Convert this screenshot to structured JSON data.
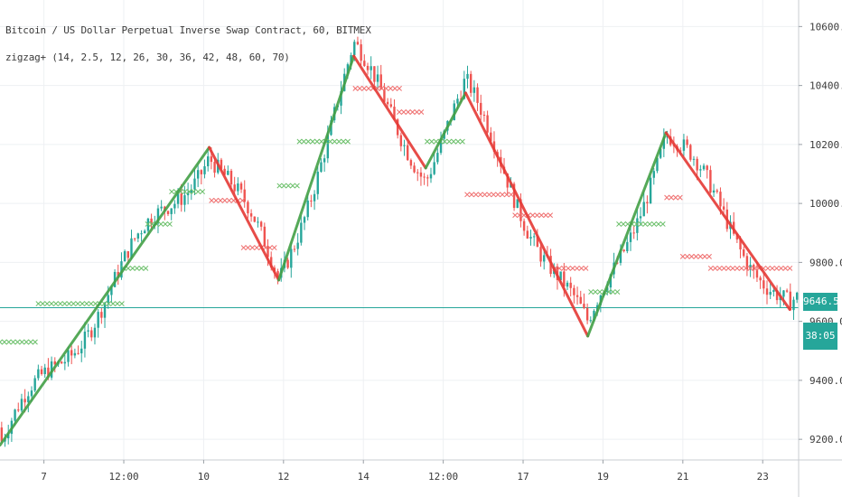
{
  "header": {
    "symbol_title": "Bitcoin / US Dollar Perpetual Inverse Swap Contract, 60, BITMEX",
    "indicator_title": "zigzag+ (14, 2.5, 12, 26, 30, 36, 42, 48, 60, 70)"
  },
  "price_axis": {
    "last_price": "9646.5",
    "countdown": "38:05"
  },
  "colors": {
    "up": "#26a69a",
    "down": "#ef5350",
    "zigzag_up": "#43a047",
    "zigzag_down": "#e53935",
    "marker_up": "#6abf69",
    "marker_down": "#ef7070",
    "price_line": "#26a69a",
    "grid": "#eef0f3",
    "axis_text": "#3b3b3b"
  },
  "chart_data": {
    "type": "candlestick",
    "title": "Bitcoin / US Dollar Perpetual Inverse Swap Contract, 60, BITMEX",
    "indicator": "zigzag+ (14, 2.5, 12, 26, 30, 36, 42, 48, 60, 70)",
    "x_ticks": [
      "7",
      "12:00",
      "10",
      "12",
      "14",
      "12:00",
      "17",
      "19",
      "21",
      "23"
    ],
    "y_ticks": [
      "9200.0",
      "9400.0",
      "9600.0",
      "9800.0",
      "10000.0",
      "10200.0",
      "10400.0",
      "10600.0"
    ],
    "ylim": [
      9130,
      10690
    ],
    "xlim": [
      0,
      100
    ],
    "grid": true,
    "last_price": 9646.5,
    "zigzag": [
      {
        "x": 0,
        "y": 9180
      },
      {
        "x": 26.2,
        "y": 10190
      },
      {
        "x": 34.9,
        "y": 9740
      },
      {
        "x": 44.3,
        "y": 10500
      },
      {
        "x": 53.3,
        "y": 10120
      },
      {
        "x": 58.3,
        "y": 10375
      },
      {
        "x": 73.6,
        "y": 9550
      },
      {
        "x": 83.4,
        "y": 10240
      },
      {
        "x": 98.9,
        "y": 9640
      }
    ],
    "markers": [
      {
        "x0": 0,
        "x1": 4.5,
        "y": 9530,
        "dir": "up"
      },
      {
        "x0": 4.8,
        "x1": 15.5,
        "y": 9660,
        "dir": "up"
      },
      {
        "x0": 15.5,
        "x1": 18.5,
        "y": 9780,
        "dir": "up"
      },
      {
        "x0": 18.5,
        "x1": 21.5,
        "y": 9930,
        "dir": "up"
      },
      {
        "x0": 21.5,
        "x1": 25.5,
        "y": 10040,
        "dir": "up"
      },
      {
        "x0": 26.5,
        "x1": 30.5,
        "y": 10010,
        "dir": "down"
      },
      {
        "x0": 30.5,
        "x1": 34.5,
        "y": 9850,
        "dir": "down"
      },
      {
        "x0": 35,
        "x1": 37.5,
        "y": 10060,
        "dir": "up"
      },
      {
        "x0": 37.5,
        "x1": 44,
        "y": 10210,
        "dir": "up"
      },
      {
        "x0": 44.5,
        "x1": 50,
        "y": 10390,
        "dir": "down"
      },
      {
        "x0": 50,
        "x1": 53,
        "y": 10310,
        "dir": "down"
      },
      {
        "x0": 53.5,
        "x1": 58,
        "y": 10210,
        "dir": "up"
      },
      {
        "x0": 58.5,
        "x1": 64,
        "y": 10030,
        "dir": "down"
      },
      {
        "x0": 64.5,
        "x1": 69,
        "y": 9960,
        "dir": "down"
      },
      {
        "x0": 69.5,
        "x1": 73.5,
        "y": 9780,
        "dir": "down"
      },
      {
        "x0": 74,
        "x1": 77.5,
        "y": 9700,
        "dir": "up"
      },
      {
        "x0": 77.5,
        "x1": 83,
        "y": 9930,
        "dir": "up"
      },
      {
        "x0": 83.5,
        "x1": 85.5,
        "y": 10020,
        "dir": "down"
      },
      {
        "x0": 85.5,
        "x1": 89,
        "y": 9820,
        "dir": "down"
      },
      {
        "x0": 89,
        "x1": 99,
        "y": 9780,
        "dir": "down"
      }
    ]
  }
}
